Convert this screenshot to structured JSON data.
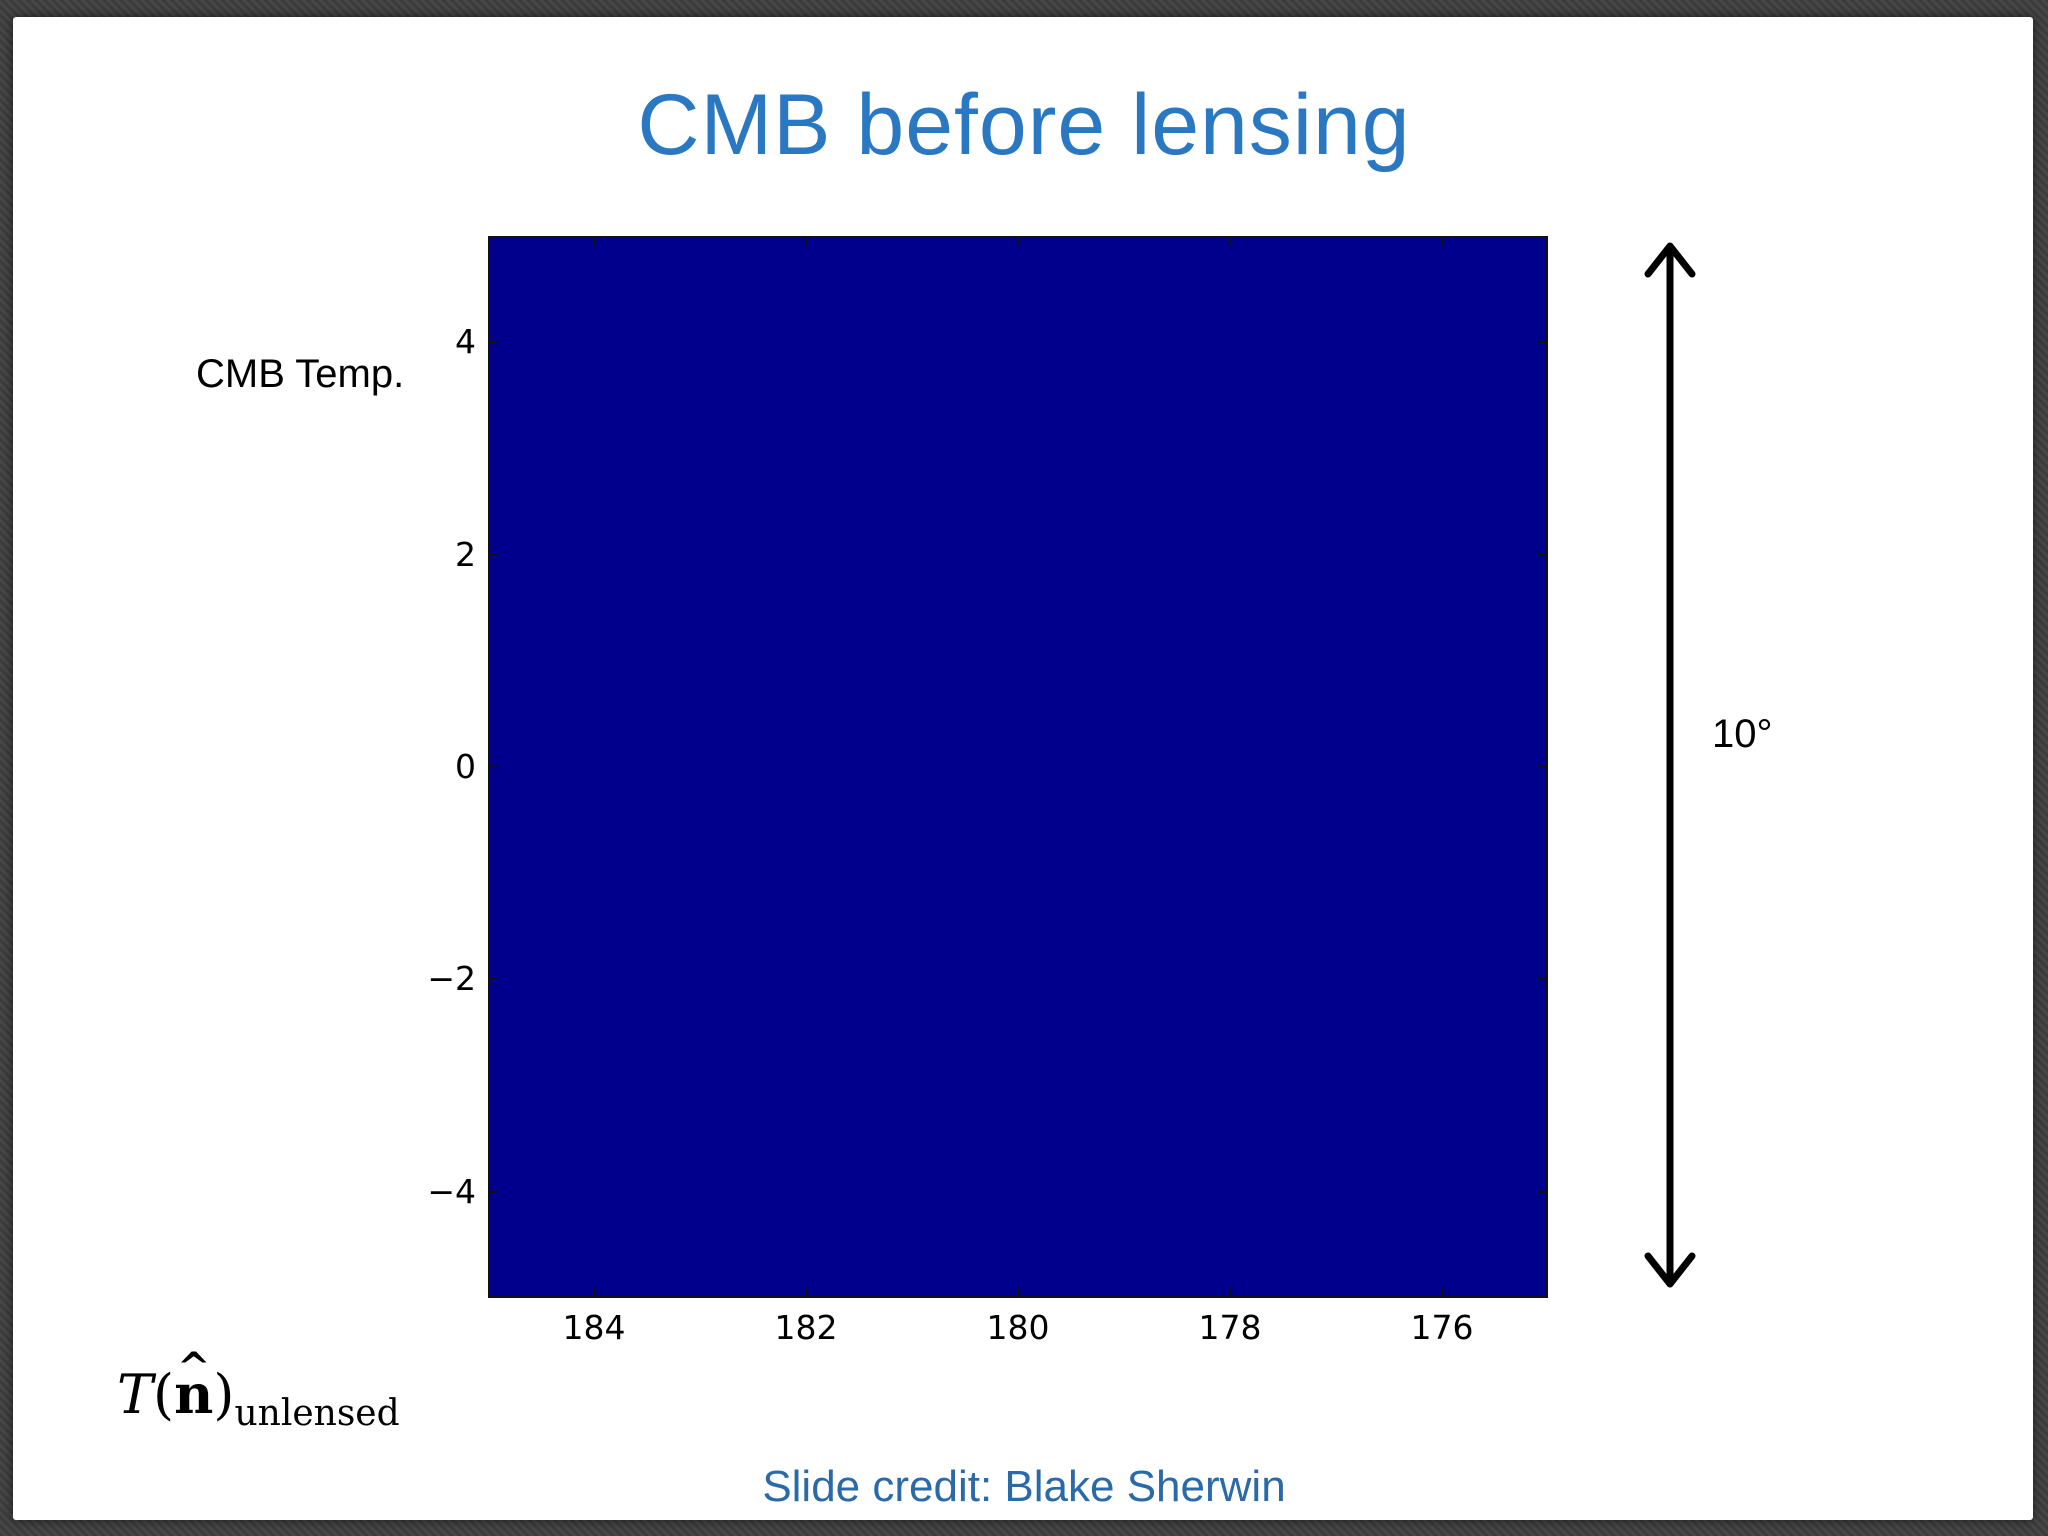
{
  "slide": {
    "title": "CMB before lensing",
    "side_label": "CMB Temp.",
    "span_label": "10°",
    "formula": {
      "symbol": "T",
      "open": "(",
      "vector": "n",
      "hat": "^",
      "close": ")",
      "subscript": "unlensed"
    },
    "credit": "Slide credit: Blake Sherwin"
  },
  "chart_data": {
    "type": "heatmap",
    "title": "",
    "xlabel": "",
    "ylabel": "",
    "xlim": [
      185,
      175
    ],
    "ylim": [
      -5,
      5
    ],
    "xticks": [
      "184",
      "182",
      "180",
      "178",
      "176"
    ],
    "yticks": [
      "4",
      "2",
      "0",
      "−2",
      "−4"
    ],
    "colormap": "jet",
    "grid": false,
    "legend": "none"
  }
}
